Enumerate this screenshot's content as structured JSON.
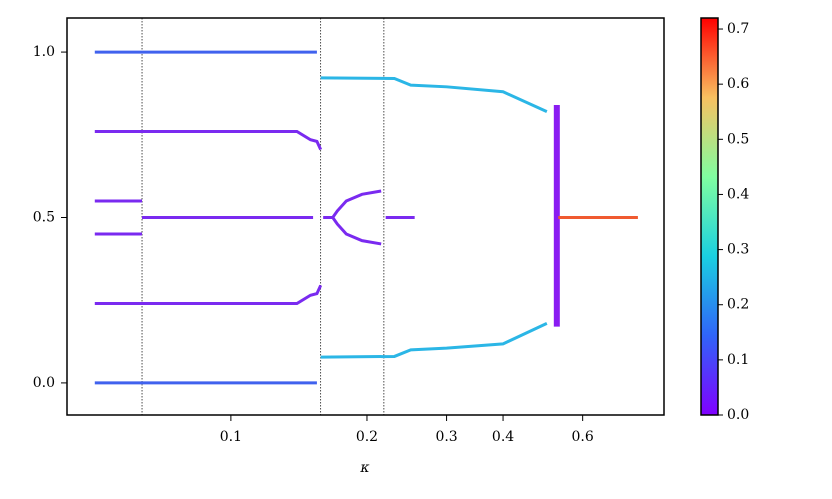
{
  "chart_data": {
    "type": "line",
    "xlabel": "κ",
    "xscale": "log",
    "xlim": [
      0.0434,
      0.908
    ],
    "xticks": [
      0.1,
      0.2,
      0.3,
      0.4,
      0.6
    ],
    "ylim": [
      -0.097,
      1.103
    ],
    "yticks": [
      {
        "value": 0,
        "label": "0.0"
      },
      {
        "value": 0.5,
        "label": "0.5"
      },
      {
        "value": 1,
        "label": "1.0"
      }
    ],
    "vlines": [
      0.0636,
      0.158,
      0.218
    ],
    "series": [
      {
        "color": "#4062ee",
        "x": [
          0.05,
          0.155
        ],
        "values": [
          1.0,
          1.0
        ]
      },
      {
        "color": "#4062ee",
        "x": [
          0.05,
          0.155
        ],
        "values": [
          0.0,
          0.0
        ]
      },
      {
        "color": "#2bb6e6",
        "x": [
          0.158,
          0.23,
          0.25,
          0.3,
          0.4,
          0.5
        ],
        "values": [
          0.922,
          0.92,
          0.9,
          0.895,
          0.88,
          0.82
        ]
      },
      {
        "color": "#2bb6e6",
        "x": [
          0.158,
          0.23,
          0.25,
          0.3,
          0.4,
          0.5
        ],
        "values": [
          0.078,
          0.08,
          0.1,
          0.105,
          0.118,
          0.18
        ]
      },
      {
        "color": "#7a2af0",
        "x": [
          0.05,
          0.14,
          0.15,
          0.155,
          0.158
        ],
        "values": [
          0.76,
          0.76,
          0.735,
          0.73,
          0.705
        ]
      },
      {
        "color": "#7a2af0",
        "x": [
          0.05,
          0.14,
          0.15,
          0.155,
          0.158
        ],
        "values": [
          0.24,
          0.24,
          0.265,
          0.27,
          0.295
        ]
      },
      {
        "color": "#7a2af0",
        "x": [
          0.05,
          0.0636
        ],
        "values": [
          0.55,
          0.55
        ]
      },
      {
        "color": "#7a2af0",
        "x": [
          0.05,
          0.0636
        ],
        "values": [
          0.45,
          0.45
        ]
      },
      {
        "color": "#7a2af0",
        "x": [
          0.0636,
          0.152
        ],
        "values": [
          0.5,
          0.5
        ]
      },
      {
        "color": "#7a2af0",
        "x": [
          0.16,
          0.168,
          0.172,
          0.18,
          0.195,
          0.215
        ],
        "values": [
          0.5,
          0.5,
          0.52,
          0.55,
          0.57,
          0.58
        ]
      },
      {
        "color": "#7a2af0",
        "x": [
          0.168,
          0.172,
          0.18,
          0.195,
          0.215
        ],
        "values": [
          0.5,
          0.48,
          0.45,
          0.43,
          0.42
        ]
      },
      {
        "color": "#7a2af0",
        "x": [
          0.22,
          0.255
        ],
        "values": [
          0.5,
          0.5
        ]
      },
      {
        "color": "#8a1cf2",
        "x": [
          0.526,
          0.526
        ],
        "values": [
          0.17,
          0.84
        ],
        "width": 6
      },
      {
        "color": "#f05a30",
        "x": [
          0.53,
          0.795
        ],
        "values": [
          0.5,
          0.5
        ]
      }
    ],
    "colorbar": {
      "lim": [
        0,
        0.72
      ],
      "ticks": [
        {
          "value": 0,
          "label": "0.0"
        },
        0.1,
        0.2,
        0.3,
        0.4,
        0.5,
        0.6,
        0.7
      ]
    }
  }
}
